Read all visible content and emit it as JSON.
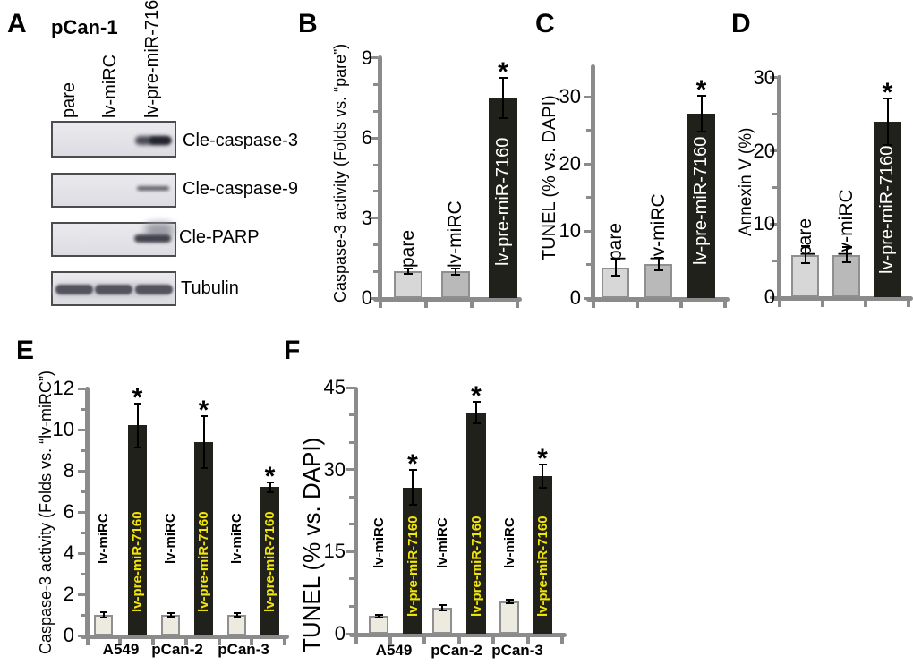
{
  "figure": {
    "panel_a": {
      "letter": "A",
      "title": "pCan-1",
      "lane_labels": [
        "pare",
        "lv-miRC",
        "lv-pre-miR-7160"
      ],
      "blot_labels": [
        "Cle-caspase-3",
        "Cle-caspase-9",
        "Cle-PARP",
        "Tubulin"
      ]
    }
  },
  "chart_data": [
    {
      "id": "B",
      "panel_letter": "B",
      "type": "bar",
      "ylabel": "Caspase-3 activity (Folds vs. “pare”)",
      "categories": [
        "pare",
        "lv-miRC",
        "lv-pre-miR-7160"
      ],
      "values": [
        1.0,
        1.0,
        7.5
      ],
      "errors": [
        0.1,
        0.12,
        0.75
      ],
      "significance": [
        "",
        "",
        "*"
      ],
      "yticks": [
        0,
        3,
        6,
        9
      ],
      "minor_unit": 1,
      "ylim": [
        0,
        9.1
      ],
      "grid": false,
      "legend": "none"
    },
    {
      "id": "C",
      "panel_letter": "C",
      "type": "bar",
      "ylabel": "TUNEL (% vs. DAPI)",
      "categories": [
        "pare",
        "lv-miRC",
        "lv-pre-miR-7160"
      ],
      "values": [
        4.6,
        5.1,
        27.5
      ],
      "errors": [
        1.3,
        0.9,
        2.7
      ],
      "significance": [
        "",
        "",
        "*"
      ],
      "yticks": [
        0,
        10,
        20,
        30
      ],
      "minor_unit": 5,
      "ylim": [
        0,
        34.8
      ],
      "grid": false,
      "legend": "none"
    },
    {
      "id": "D",
      "panel_letter": "D",
      "type": "bar",
      "ylabel": "Annexin V (%)",
      "categories": [
        "pare",
        "lv-miRC",
        "lv-pre-miR-7160"
      ],
      "values": [
        5.8,
        5.8,
        24.0
      ],
      "errors": [
        1.2,
        1.0,
        3.2
      ],
      "significance": [
        "",
        "",
        "*"
      ],
      "yticks": [
        0,
        10,
        20,
        30
      ],
      "minor_unit": 5,
      "ylim": [
        0,
        30.3
      ],
      "grid": false,
      "legend": "none"
    },
    {
      "id": "E",
      "panel_letter": "E",
      "type": "grouped_bar",
      "ylabel": "Caspase-3 activity (Folds vs. “lv-miRC”)",
      "categories": [
        "A549",
        "pCan-2",
        "pCan-3"
      ],
      "series": [
        {
          "name": "lv-miRC",
          "values": [
            1.0,
            1.0,
            1.0
          ],
          "errors": [
            0.15,
            0.08,
            0.1
          ],
          "significance": [
            "",
            "",
            ""
          ]
        },
        {
          "name": "lv-pre-miR-7160",
          "values": [
            10.2,
            9.4,
            7.2
          ],
          "errors": [
            1.05,
            1.25,
            0.25
          ],
          "significance": [
            "*",
            "*",
            "*"
          ]
        }
      ],
      "yticks": [
        0,
        2,
        4,
        6,
        8,
        10,
        12
      ],
      "minor_unit": 1,
      "ylim": [
        0,
        12.1
      ],
      "grid": false,
      "legend": "none"
    },
    {
      "id": "F",
      "panel_letter": "F",
      "type": "grouped_bar",
      "ylabel": "TUNEL (% vs. DAPI)",
      "categories": [
        "A549",
        "pCan-2",
        "pCan-3"
      ],
      "series": [
        {
          "name": "lv-miRC",
          "values": [
            3.2,
            4.7,
            5.9
          ],
          "errors": [
            0.3,
            0.5,
            0.4
          ],
          "significance": [
            "",
            "",
            ""
          ]
        },
        {
          "name": "lv-pre-miR-7160",
          "values": [
            26.7,
            40.4,
            28.8
          ],
          "errors": [
            3.2,
            2.0,
            2.1
          ],
          "significance": [
            "*",
            "*",
            "*"
          ]
        }
      ],
      "yticks": [
        0,
        15,
        30,
        45
      ],
      "minor_unit": 5,
      "ylim": [
        0,
        45.2
      ],
      "grid": false,
      "legend": "none"
    }
  ],
  "colors": {
    "bar_pare": "#d7d7d7",
    "bar_lvmirc": "#b9b9b9",
    "bar_dark": "#21211b",
    "bar_cream": "#edebdf",
    "label_yellow": "#f2e50a",
    "label_white": "#ffffff",
    "axis": "#8b8b8b",
    "error_bar": "#000000",
    "star": "#000000"
  }
}
